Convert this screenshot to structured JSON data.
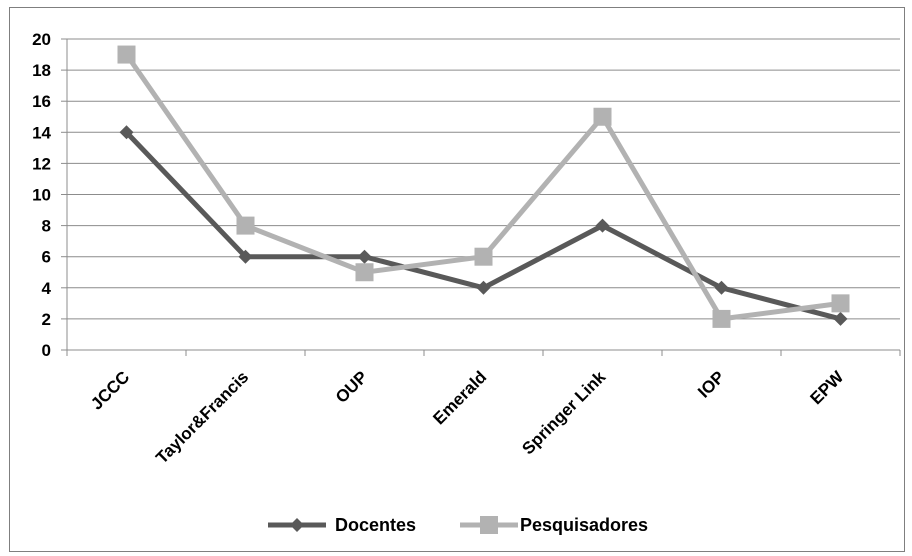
{
  "chart_data": {
    "type": "line",
    "title": "",
    "categories": [
      "JCCC",
      "Taylor&Francis",
      "OUP",
      "Emerald",
      "Springer Link",
      "IOP",
      "EPW"
    ],
    "series": [
      {
        "name": "Docentes",
        "values": [
          14,
          6,
          6,
          4,
          8,
          4,
          2
        ],
        "color": "#595959",
        "marker": "diamond"
      },
      {
        "name": "Pesquisadores",
        "values": [
          19,
          8,
          5,
          6,
          15,
          2,
          3
        ],
        "color": "#b2b2b2",
        "marker": "square"
      }
    ],
    "yticks": [
      "0",
      "2",
      "4",
      "6",
      "8",
      "10",
      "12",
      "14",
      "16",
      "18",
      "20"
    ],
    "ylim": [
      0,
      20
    ],
    "grid": true,
    "legend_position": "bottom"
  }
}
